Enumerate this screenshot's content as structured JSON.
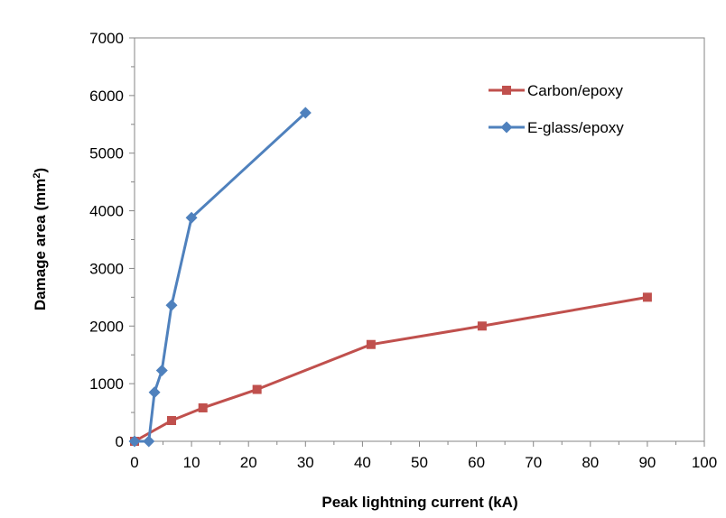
{
  "chart_data": {
    "type": "line",
    "title": "",
    "xlabel": "Peak lightning current (kA)",
    "ylabel": "Damage area (mm",
    "ylabel_sup": "2",
    "ylabel_end": ")",
    "xlim": [
      0,
      100
    ],
    "ylim": [
      0,
      7000
    ],
    "x_ticks": [
      "0",
      "10",
      "20",
      "30",
      "40",
      "50",
      "60",
      "70",
      "80",
      "90",
      "100"
    ],
    "y_ticks": [
      "0",
      "1000",
      "2000",
      "3000",
      "4000",
      "5000",
      "6000",
      "7000"
    ],
    "grid": false,
    "legend_position": "top-right",
    "series": [
      {
        "name": "Carbon/epoxy",
        "color": "#C0504D",
        "marker": "square",
        "points": [
          {
            "x": 0,
            "y": 0
          },
          {
            "x": 6.5,
            "y": 360
          },
          {
            "x": 12,
            "y": 580
          },
          {
            "x": 21.5,
            "y": 900
          },
          {
            "x": 41.5,
            "y": 1680
          },
          {
            "x": 61,
            "y": 2000
          },
          {
            "x": 90,
            "y": 2500
          }
        ]
      },
      {
        "name": "E-glass/epoxy",
        "color": "#4F81BD",
        "marker": "diamond",
        "points": [
          {
            "x": 0,
            "y": 0
          },
          {
            "x": 2.5,
            "y": 0
          },
          {
            "x": 3.5,
            "y": 850
          },
          {
            "x": 4.8,
            "y": 1230
          },
          {
            "x": 6.5,
            "y": 2360
          },
          {
            "x": 10,
            "y": 3880
          },
          {
            "x": 30,
            "y": 5700
          }
        ]
      }
    ]
  }
}
